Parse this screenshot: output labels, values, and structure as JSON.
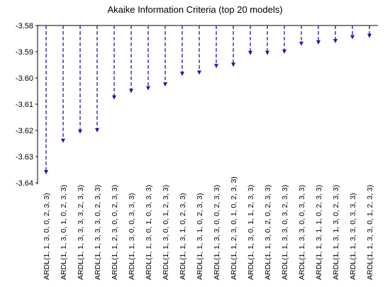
{
  "chart_data": {
    "type": "bar",
    "title": "Akaike Information Criteria (top 20 models)",
    "categories": [
      "ARDL(1, 1, 3, 0, 0, 2, 3, 3)",
      "ARDL(1, 1, 3, 0, 1, 0, 2, 3, 3)",
      "ARDL(1, 1, 3, 3, 3, 3, 2, 3, 3)",
      "ARDL(1, 1, 3, 3, 3, 0, 2, 3, 3)",
      "ARDL(1, 1, 2, 3, 0, 0, 2, 3, 3)",
      "ARDL(1, 1, 3, 0, 0, 3, 3, 3)",
      "ARDL(1, 1, 3, 0, 1, 0, 3, 3, 3)",
      "ARDL(1, 1, 3, 0, 0, 1, 2, 3, 3)",
      "ARDL(1, 1, 3, 1, 0, 2, 3, 3)",
      "ARDL(1, 1, 3, 1, 0, 2, 3, 3)",
      "ARDL(1, 1, 3, 3, 0, 0, 2, 3, 3)",
      "ARDL(1, 1, 2, 3, 0, 1, 0, 2, 3, 3)",
      "ARDL(1, 1, 3, 0, 1, 1, 2, 3, 3)",
      "ARDL(1, 1, 3, 0, 2, 0, 2, 3, 3)",
      "ARDL(1, 1, 3, 3, 0, 3, 2, 3, 3)",
      "ARDL(1, 1, 3, 3, 0, 0, 3, 3, 3)",
      "ARDL(1, 1, 3, 1, 1, 0, 2, 3, 3)",
      "ARDL(1, 1, 3, 1, 3, 0, 2, 3, 3)",
      "ARDL(1, 1, 3, 3, 0, 3, 3, 3)",
      "ARDL(1, 1, 3, 3, 0, 1, 2, 3, 3)"
    ],
    "values": [
      -3.6365,
      -3.6245,
      -3.621,
      -3.6205,
      -3.608,
      -3.6055,
      -3.6045,
      -3.603,
      -3.599,
      -3.5985,
      -3.596,
      -3.5955,
      -3.591,
      -3.591,
      -3.5905,
      -3.5875,
      -3.587,
      -3.5865,
      -3.585,
      -3.5845
    ],
    "ylim": [
      -3.64,
      -3.58
    ],
    "yticks": [
      -3.58,
      -3.59,
      -3.6,
      -3.61,
      -3.62,
      -3.63,
      -3.64
    ],
    "ytick_labels": [
      "-3.58",
      "-3.59",
      "-3.60",
      "-3.61",
      "-3.62",
      "-3.63",
      "-3.64"
    ],
    "xlabel": "",
    "ylabel": "",
    "grid": false,
    "legend": "none",
    "colors": {
      "line": "#1a1aa8",
      "marker": "#1a1aa8",
      "axis": "#000000"
    }
  }
}
